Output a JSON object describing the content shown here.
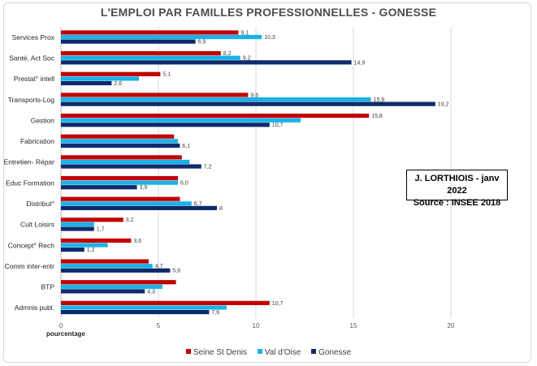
{
  "chart_data": {
    "type": "bar",
    "orientation": "horizontal",
    "title": "L'EMPLOI PAR FAMILLES PROFESSIONNELLES - GONESSE",
    "xlabel": "pourcentage",
    "ylabel": "",
    "xlim": [
      0,
      20
    ],
    "xticks": [
      "0",
      "5",
      "10",
      "15",
      "20"
    ],
    "grid": true,
    "legend_position": "bottom",
    "categories": [
      "Services Prox",
      "Santé, Act Soc",
      "Prestat° intell",
      "Transports-Log",
      "Gestion",
      "Fabrication",
      "Entretien- Répar",
      "Educ Formation",
      "Distribut°",
      "Cult Loisirs",
      "Concept° Rech",
      "Comm inter-entr",
      "BTP",
      "Admnis publ."
    ],
    "series": [
      {
        "name": "Seine St Denis",
        "color": "#c00000",
        "values": [
          9.1,
          8.2,
          5.1,
          9.6,
          15.8,
          5.8,
          6.2,
          6.0,
          6.1,
          3.2,
          3.6,
          4.5,
          5.9,
          10.7
        ],
        "labels": [
          "9,1",
          "8,2",
          "5,1",
          "9,6",
          "15,8",
          "",
          "",
          "",
          "",
          "3,2",
          "3,6",
          "",
          "",
          "10,7"
        ]
      },
      {
        "name": "Val d'Oise",
        "color": "#1ab2e8",
        "values": [
          10.3,
          9.2,
          4.0,
          15.9,
          12.3,
          6.0,
          6.6,
          6.0,
          6.7,
          1.7,
          2.4,
          4.7,
          5.2,
          8.5
        ],
        "labels": [
          "10,3",
          "9,2",
          "",
          "15,9",
          "",
          "",
          "",
          "6,0",
          "6,7",
          "",
          "",
          "4,7",
          "",
          ""
        ]
      },
      {
        "name": "Gonesse",
        "color": "#0f2a6b",
        "values": [
          6.9,
          14.9,
          2.6,
          19.2,
          10.7,
          6.1,
          7.2,
          3.9,
          8,
          1.7,
          1.2,
          5.6,
          4.3,
          7.6
        ],
        "labels": [
          "6,9",
          "14,9",
          "2,6",
          "19,2",
          "10,7",
          "6,1",
          "7,2",
          "3,9",
          "8",
          "1,7",
          "1,2",
          "5,6",
          "4,3",
          "7,6"
        ]
      }
    ]
  },
  "annotation": {
    "line1": "J. LORTHIOIS - janv 2022",
    "line2": "Source : INSEE 2018"
  }
}
